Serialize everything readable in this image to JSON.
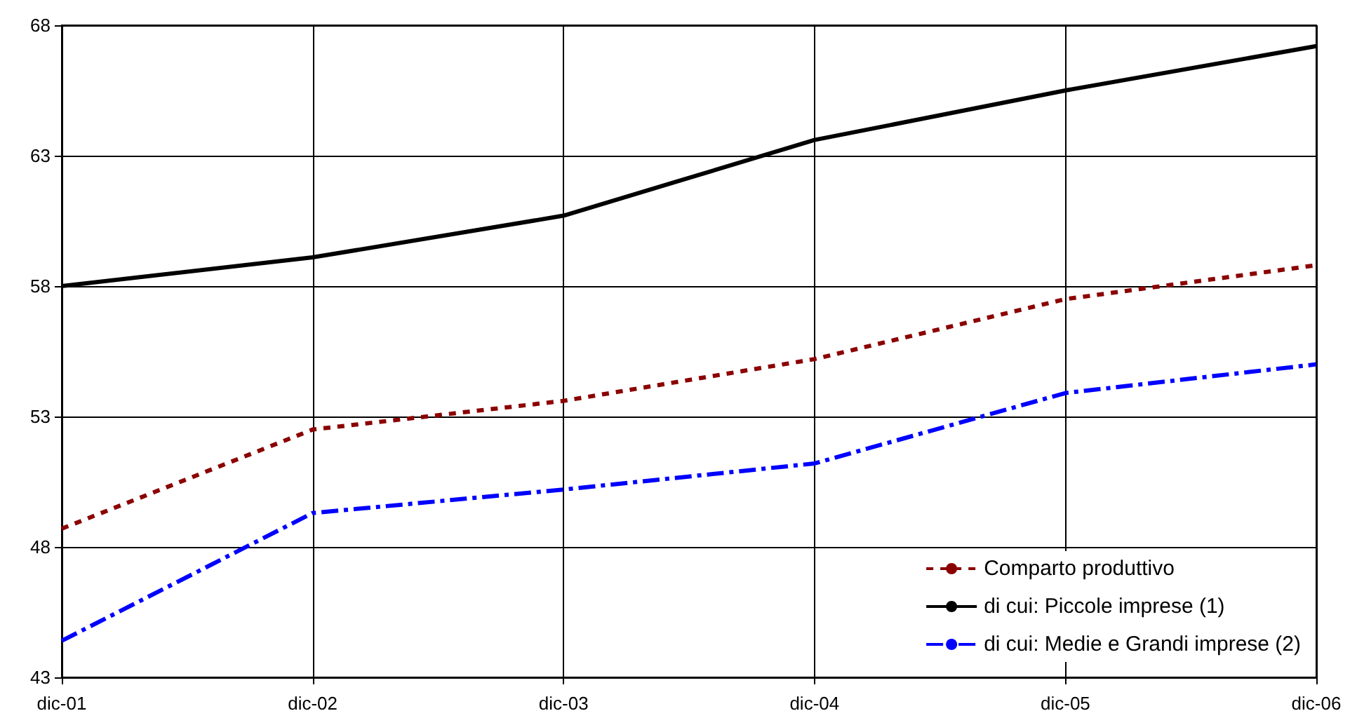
{
  "chart_data": {
    "type": "line",
    "categories": [
      "dic-01",
      "dic-02",
      "dic-03",
      "dic-04",
      "dic-05",
      "dic-06"
    ],
    "series": [
      {
        "name": "Comparto produttivo",
        "color": "#8b0000",
        "line_style": "dotted",
        "values": [
          48.7,
          52.5,
          53.6,
          55.2,
          57.5,
          58.8
        ]
      },
      {
        "name": "di cui: Piccole imprese (1)",
        "color": "#000000",
        "line_style": "solid",
        "values": [
          58.0,
          59.1,
          60.7,
          63.6,
          65.5,
          67.2
        ]
      },
      {
        "name": "di cui: Medie e Grandi imprese (2)",
        "color": "#0000ff",
        "line_style": "dashed",
        "values": [
          44.4,
          49.3,
          50.2,
          51.2,
          53.9,
          55.0
        ]
      }
    ],
    "ylim": [
      43,
      68
    ],
    "yticks": [
      43,
      48,
      53,
      58,
      63,
      68
    ],
    "grid": true,
    "legend": "bottom right",
    "marker": "none"
  }
}
